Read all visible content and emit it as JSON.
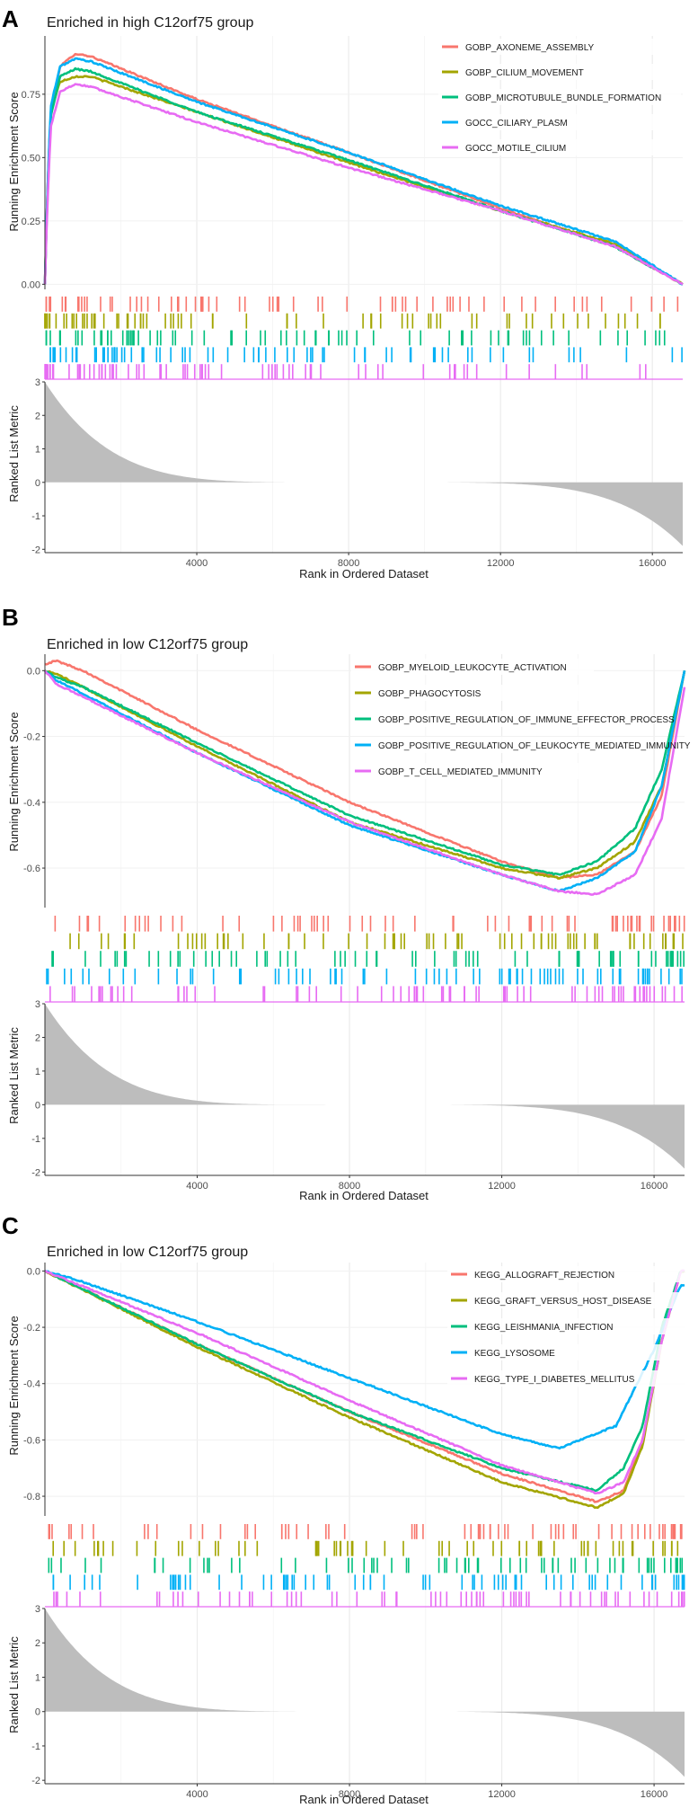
{
  "chart_data": [
    {
      "type": "line",
      "panel": "A",
      "title": "Enriched in high C12orf75 group",
      "ylabel": "Running Enrichment Score",
      "ylim": [
        -0.02,
        0.98
      ],
      "yticks": [
        0.0,
        0.25,
        0.5,
        0.75
      ],
      "ytick_labels": [
        "0.00",
        "0.25",
        "0.50",
        "0.75"
      ],
      "xlabel": "Rank in Ordered Dataset",
      "xlim": [
        0,
        16800
      ],
      "xticks": [
        4000,
        8000,
        12000,
        16000
      ],
      "xtick_labels": [
        "4000",
        "8000",
        "12000",
        "16000"
      ],
      "metric_ylabel": "Ranked List Metric",
      "metric_ylim": [
        -2.1,
        3.0
      ],
      "metric_yticks": [
        -2,
        -1,
        0,
        1,
        2,
        3
      ],
      "metric_ytick_labels": [
        "-2",
        "-1",
        "0",
        "1",
        "2",
        "3"
      ],
      "metric_curve": {
        "start": 3.0,
        "end": -1.9
      },
      "legend_position": "top-right",
      "series": [
        {
          "name": "GOBP_AXONEME_ASSEMBLY",
          "color": "#F8766D",
          "x": [
            0,
            50,
            150,
            400,
            800,
            1200,
            4000,
            8000,
            12000,
            15000,
            16800
          ],
          "y": [
            0.0,
            0.3,
            0.68,
            0.86,
            0.91,
            0.9,
            0.73,
            0.52,
            0.3,
            0.15,
            0.0
          ]
        },
        {
          "name": "GOBP_CILIUM_MOVEMENT",
          "color": "#A3A500",
          "x": [
            0,
            50,
            150,
            400,
            800,
            1200,
            4000,
            8000,
            12000,
            15000,
            16800
          ],
          "y": [
            0.0,
            0.3,
            0.68,
            0.8,
            0.82,
            0.82,
            0.68,
            0.48,
            0.29,
            0.16,
            0.0
          ]
        },
        {
          "name": "GOBP_MICROTUBULE_BUNDLE_FORMATION",
          "color": "#00BF7D",
          "x": [
            0,
            50,
            150,
            400,
            800,
            1200,
            4000,
            8000,
            12000,
            15000,
            16800
          ],
          "y": [
            0.0,
            0.28,
            0.66,
            0.82,
            0.85,
            0.84,
            0.68,
            0.49,
            0.29,
            0.15,
            0.0
          ]
        },
        {
          "name": "GOCC_CILIARY_PLASM",
          "color": "#00B0F6",
          "x": [
            0,
            50,
            150,
            400,
            800,
            1200,
            4000,
            8000,
            12000,
            15000,
            16800
          ],
          "y": [
            0.0,
            0.3,
            0.7,
            0.86,
            0.89,
            0.88,
            0.72,
            0.52,
            0.31,
            0.17,
            0.0
          ]
        },
        {
          "name": "GOCC_MOTILE_CILIUM",
          "color": "#E76BF3",
          "x": [
            0,
            50,
            150,
            400,
            800,
            1200,
            4000,
            8000,
            12000,
            15000,
            16800
          ],
          "y": [
            0.0,
            0.25,
            0.62,
            0.76,
            0.79,
            0.78,
            0.64,
            0.46,
            0.29,
            0.15,
            0.0
          ]
        }
      ]
    },
    {
      "type": "line",
      "panel": "B",
      "title": "Enriched in low C12orf75 group",
      "ylabel": "Running Enrichment Score",
      "ylim": [
        -0.72,
        0.05
      ],
      "yticks": [
        -0.6,
        -0.4,
        -0.2,
        0.0
      ],
      "ytick_labels": [
        "-0.6",
        "-0.4",
        "-0.2",
        "0.0"
      ],
      "xlabel": "Rank in Ordered Dataset",
      "xlim": [
        0,
        16800
      ],
      "xticks": [
        4000,
        8000,
        12000,
        16000
      ],
      "xtick_labels": [
        "4000",
        "8000",
        "12000",
        "16000"
      ],
      "metric_ylabel": "Ranked List Metric",
      "metric_ylim": [
        -2.1,
        3.0
      ],
      "metric_yticks": [
        -2,
        -1,
        0,
        1,
        2,
        3
      ],
      "metric_ytick_labels": [
        "-2",
        "-1",
        "0",
        "1",
        "2",
        "3"
      ],
      "metric_curve": {
        "start": 3.0,
        "end": -1.9
      },
      "legend_position": "top-right",
      "series": [
        {
          "name": "GOBP_MYELOID_LEUKOCYTE_ACTIVATION",
          "color": "#F8766D",
          "x": [
            0,
            300,
            1000,
            4000,
            8000,
            12000,
            13500,
            14500,
            15500,
            16200,
            16800
          ],
          "y": [
            0.02,
            0.03,
            0.0,
            -0.18,
            -0.4,
            -0.58,
            -0.63,
            -0.62,
            -0.55,
            -0.38,
            0.0
          ]
        },
        {
          "name": "GOBP_PHAGOCYTOSIS",
          "color": "#A3A500",
          "x": [
            0,
            300,
            1000,
            4000,
            8000,
            12000,
            13500,
            14500,
            15500,
            16200,
            16800
          ],
          "y": [
            0.0,
            -0.01,
            -0.05,
            -0.23,
            -0.46,
            -0.6,
            -0.63,
            -0.6,
            -0.52,
            -0.35,
            0.0
          ]
        },
        {
          "name": "GOBP_POSITIVE_REGULATION_OF_IMMUNE_EFFECTOR_PROCESS",
          "color": "#00BF7D",
          "x": [
            0,
            300,
            1000,
            4000,
            8000,
            12000,
            13500,
            14500,
            15500,
            16200,
            16800
          ],
          "y": [
            0.0,
            -0.02,
            -0.05,
            -0.22,
            -0.44,
            -0.59,
            -0.62,
            -0.58,
            -0.48,
            -0.3,
            0.0
          ]
        },
        {
          "name": "GOBP_POSITIVE_REGULATION_OF_LEUKOCYTE_MEDIATED_IMMUNITY",
          "color": "#00B0F6",
          "x": [
            0,
            300,
            1000,
            4000,
            8000,
            12000,
            13500,
            14500,
            15500,
            16200,
            16800
          ],
          "y": [
            0.0,
            -0.03,
            -0.07,
            -0.25,
            -0.47,
            -0.62,
            -0.67,
            -0.63,
            -0.55,
            -0.35,
            0.0
          ]
        },
        {
          "name": "GOBP_T_CELL_MEDIATED_IMMUNITY",
          "color": "#E76BF3",
          "x": [
            0,
            300,
            1000,
            4000,
            8000,
            12000,
            13500,
            14500,
            15500,
            16200,
            16800
          ],
          "y": [
            0.0,
            -0.04,
            -0.08,
            -0.25,
            -0.46,
            -0.62,
            -0.67,
            -0.68,
            -0.62,
            -0.45,
            -0.05
          ]
        }
      ]
    },
    {
      "type": "line",
      "panel": "C",
      "title": "Enriched in low C12orf75 group",
      "ylabel": "Running Enrichment Score",
      "ylim": [
        -0.87,
        0.03
      ],
      "yticks": [
        -0.8,
        -0.6,
        -0.4,
        -0.2,
        0.0
      ],
      "ytick_labels": [
        "-0.8",
        "-0.6",
        "-0.4",
        "-0.2",
        "0.0"
      ],
      "xlabel": "Rank in Ordered Dataset",
      "xlim": [
        0,
        16800
      ],
      "xticks": [
        4000,
        8000,
        12000,
        16000
      ],
      "xtick_labels": [
        "4000",
        "8000",
        "12000",
        "16000"
      ],
      "metric_ylabel": "Ranked List Metric",
      "metric_ylim": [
        -2.1,
        3.0
      ],
      "metric_yticks": [
        -2,
        -1,
        0,
        1,
        2,
        3
      ],
      "metric_ytick_labels": [
        "-2",
        "-1",
        "0",
        "1",
        "2",
        "3"
      ],
      "metric_curve": {
        "start": 3.0,
        "end": -1.9
      },
      "legend_position": "top-right",
      "series": [
        {
          "name": "KEGG_ALLOGRAFT_REJECTION",
          "color": "#F8766D",
          "x": [
            0,
            4000,
            8000,
            12000,
            14500,
            15200,
            15700,
            16200,
            16700
          ],
          "y": [
            0.0,
            -0.26,
            -0.5,
            -0.72,
            -0.82,
            -0.78,
            -0.6,
            -0.25,
            0.0
          ]
        },
        {
          "name": "KEGG_GRAFT_VERSUS_HOST_DISEASE",
          "color": "#A3A500",
          "x": [
            0,
            4000,
            8000,
            12000,
            14500,
            15200,
            15700,
            16200,
            16700
          ],
          "y": [
            0.0,
            -0.27,
            -0.52,
            -0.75,
            -0.84,
            -0.79,
            -0.62,
            -0.25,
            0.0
          ]
        },
        {
          "name": "KEGG_LEISHMANIA_INFECTION",
          "color": "#00BF7D",
          "x": [
            0,
            4000,
            8000,
            12000,
            14500,
            15200,
            15700,
            16200,
            16700
          ],
          "y": [
            0.0,
            -0.26,
            -0.5,
            -0.7,
            -0.78,
            -0.7,
            -0.55,
            -0.2,
            0.0
          ]
        },
        {
          "name": "KEGG_LYSOSOME",
          "color": "#00B0F6",
          "x": [
            0,
            800,
            4000,
            8000,
            12000,
            13500,
            15000,
            16000,
            16700
          ],
          "y": [
            0.0,
            -0.03,
            -0.18,
            -0.38,
            -0.58,
            -0.63,
            -0.55,
            -0.28,
            -0.05
          ]
        },
        {
          "name": "KEGG_TYPE_I_DIABETES_MELLITUS",
          "color": "#E76BF3",
          "x": [
            0,
            4000,
            8000,
            12000,
            14500,
            15200,
            15700,
            16200,
            16700
          ],
          "y": [
            0.0,
            -0.22,
            -0.46,
            -0.69,
            -0.79,
            -0.75,
            -0.6,
            -0.25,
            0.0
          ]
        }
      ]
    }
  ]
}
